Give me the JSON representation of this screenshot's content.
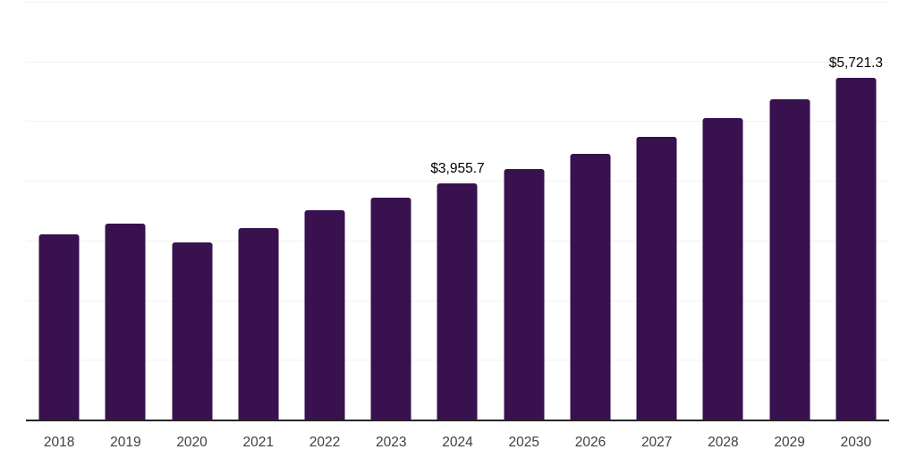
{
  "chart_data": {
    "type": "bar",
    "title": "",
    "xlabel": "",
    "ylabel": "",
    "categories": [
      "2018",
      "2019",
      "2020",
      "2021",
      "2022",
      "2023",
      "2024",
      "2025",
      "2026",
      "2027",
      "2028",
      "2029",
      "2030"
    ],
    "values": [
      3100,
      3278,
      2965,
      3205,
      3502,
      3719,
      3955.7,
      4205,
      4459,
      4735,
      5056,
      5370,
      5721.3
    ],
    "ylim": [
      0,
      7000
    ],
    "gridline_interval": 1000,
    "grid": true,
    "legend": false,
    "y_axis_visible": false,
    "data_labels": {
      "2024": "$3,955.7",
      "2030": "$5,721.3"
    }
  },
  "colors": {
    "bar": "#38114E",
    "gridline": "#f2f2f2",
    "axis_line": "#262626",
    "x_label_text": "#404040",
    "data_label_text": "#000000",
    "background": "#ffffff"
  }
}
